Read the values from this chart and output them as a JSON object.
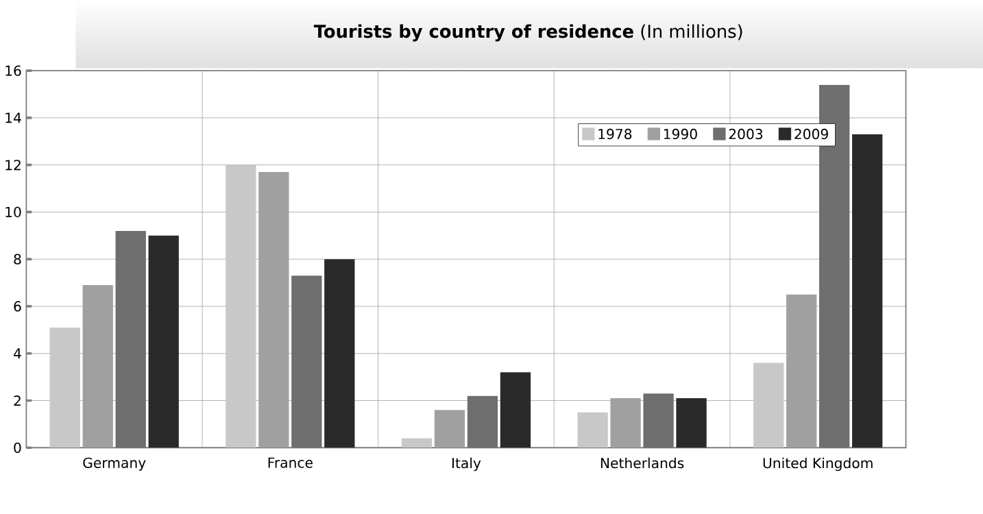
{
  "chart_data": {
    "type": "bar",
    "title": "**Tourists by country of residence** (In millions)",
    "categories": [
      "Germany",
      "France",
      "Italy",
      "Netherlands",
      "United Kingdom"
    ],
    "series": [
      {
        "name": "1978",
        "color": "#c8c8c8",
        "values": [
          5.1,
          12.0,
          0.4,
          1.5,
          3.6
        ]
      },
      {
        "name": "1990",
        "color": "#a0a0a0",
        "values": [
          6.9,
          11.7,
          1.6,
          2.1,
          6.5
        ]
      },
      {
        "name": "2003",
        "color": "#6e6e6e",
        "values": [
          9.2,
          7.3,
          2.2,
          2.3,
          15.4
        ]
      },
      {
        "name": "2009",
        "color": "#2a2a2a",
        "values": [
          9.0,
          8.0,
          3.2,
          2.1,
          13.3
        ]
      }
    ],
    "ylim": [
      0,
      16
    ],
    "yticks": [
      0,
      2,
      4,
      6,
      8,
      10,
      12,
      14,
      16
    ],
    "grid": true,
    "legend": "top right"
  }
}
